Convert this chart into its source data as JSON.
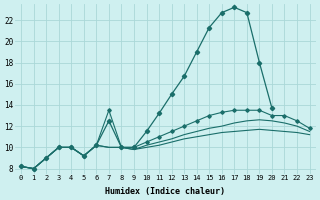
{
  "xlabel": "Humidex (Indice chaleur)",
  "ylabel": "",
  "background_color": "#cff0f0",
  "grid_color": "#aad8d8",
  "line_color": "#1a6e6a",
  "x_values": [
    0,
    1,
    2,
    3,
    4,
    5,
    6,
    7,
    8,
    9,
    10,
    11,
    12,
    13,
    14,
    15,
    16,
    17,
    18,
    19,
    20,
    21,
    22,
    23
  ],
  "line_main": [
    8.2,
    8.0,
    9.0,
    10.0,
    10.0,
    9.2,
    10.2,
    12.5,
    10.0,
    10.0,
    11.5,
    13.2,
    15.0,
    16.7,
    19.0,
    21.3,
    22.7,
    23.2,
    22.7,
    18.0,
    13.7,
    null,
    null,
    null
  ],
  "line_mid": [
    8.2,
    8.0,
    9.0,
    10.0,
    10.0,
    9.2,
    10.2,
    13.5,
    10.0,
    10.0,
    10.5,
    11.0,
    11.5,
    12.0,
    12.5,
    13.0,
    13.3,
    13.5,
    13.5,
    13.5,
    13.0,
    13.0,
    12.5,
    11.8
  ],
  "line_low2": [
    8.2,
    8.0,
    9.0,
    10.0,
    10.0,
    9.2,
    10.2,
    10.0,
    10.0,
    9.8,
    10.2,
    10.5,
    10.8,
    11.2,
    11.5,
    11.8,
    12.0,
    12.3,
    12.5,
    12.6,
    12.5,
    12.3,
    12.0,
    11.5
  ],
  "line_low1": [
    8.2,
    8.0,
    9.0,
    10.0,
    10.0,
    9.2,
    10.2,
    10.0,
    10.0,
    9.8,
    10.0,
    10.2,
    10.5,
    10.8,
    11.0,
    11.2,
    11.4,
    11.5,
    11.6,
    11.7,
    11.6,
    11.5,
    11.4,
    11.2
  ],
  "ylim": [
    7.5,
    23.5
  ],
  "xlim": [
    -0.5,
    23.5
  ],
  "yticks": [
    8,
    10,
    12,
    14,
    16,
    18,
    20,
    22
  ],
  "xticks": [
    0,
    1,
    2,
    3,
    4,
    5,
    6,
    7,
    8,
    9,
    10,
    11,
    12,
    13,
    14,
    15,
    16,
    17,
    18,
    19,
    20,
    21,
    22,
    23
  ]
}
